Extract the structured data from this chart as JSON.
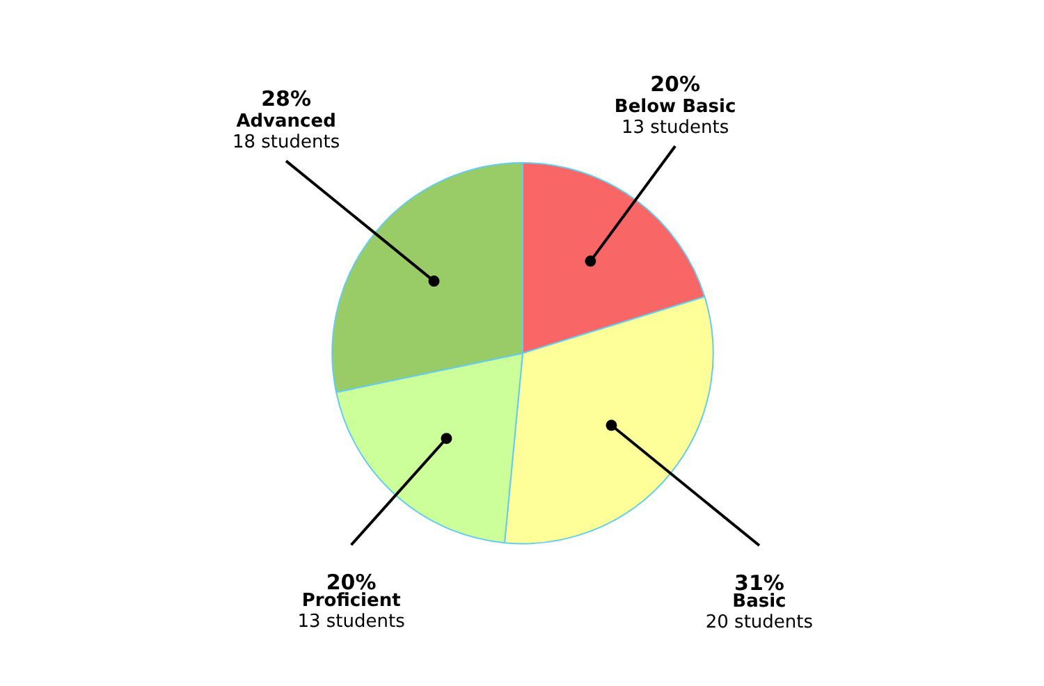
{
  "chart_data": {
    "type": "pie",
    "categories": [
      "Below Basic",
      "Basic",
      "Proficient",
      "Advanced"
    ],
    "values": [
      20,
      31,
      20,
      28
    ],
    "colors": [
      "#f96666",
      "#ffff99",
      "#ccff99",
      "#99cc66"
    ],
    "value_labels": [
      "20%",
      "31%",
      "20%",
      "28%"
    ],
    "annotations": [
      "13 students",
      "20 students",
      "13 students",
      "18 students"
    ]
  }
}
